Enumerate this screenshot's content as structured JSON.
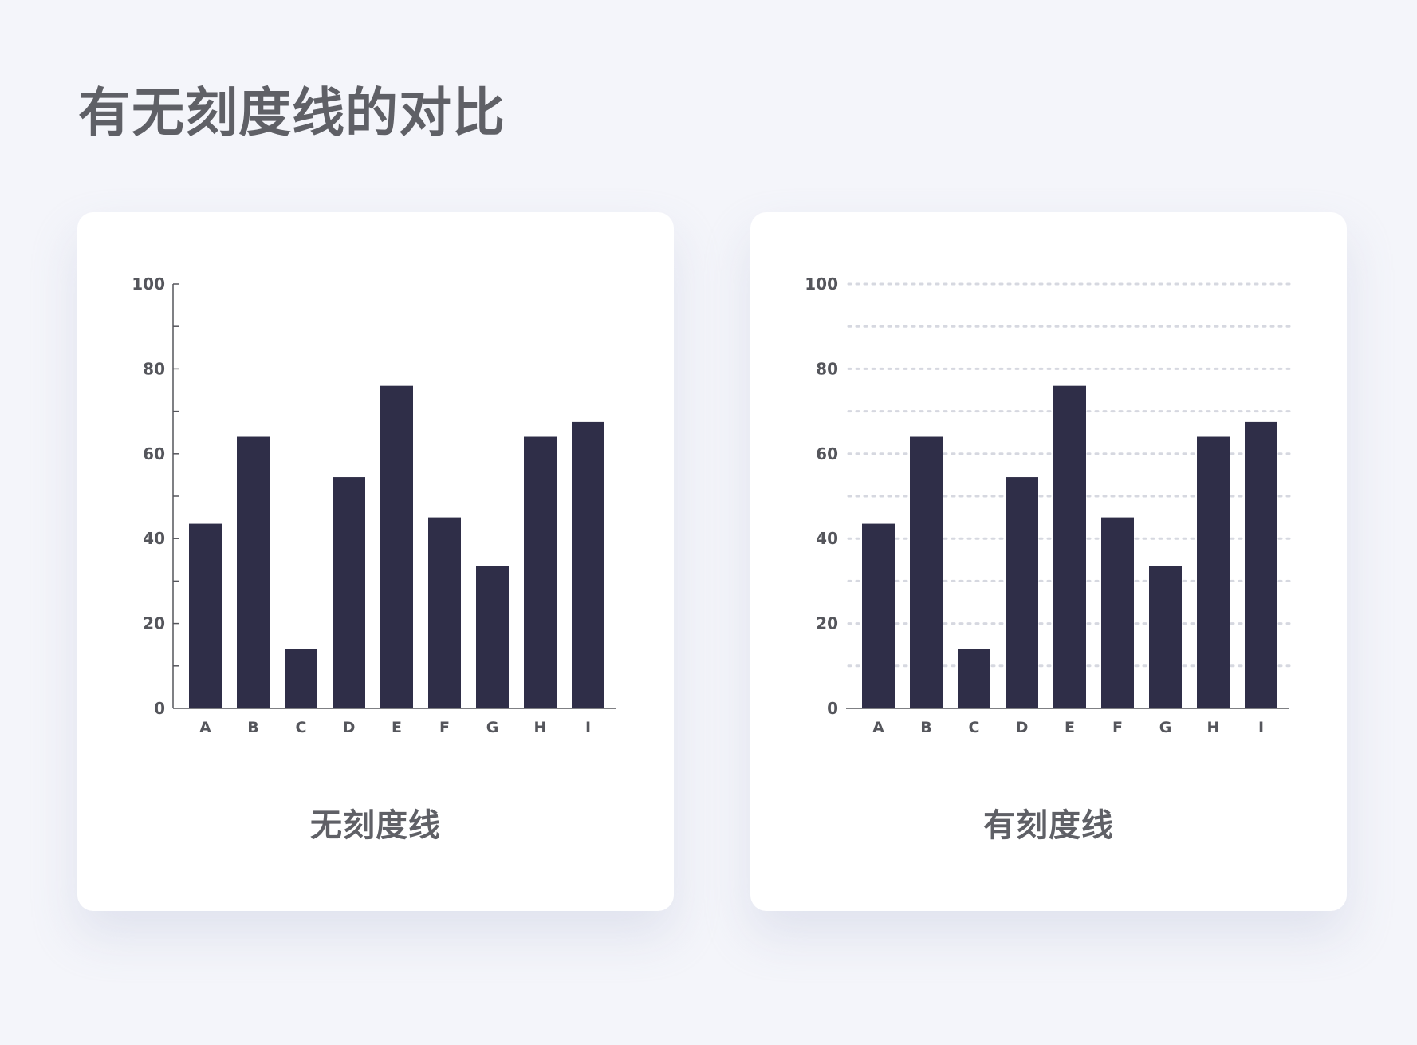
{
  "page": {
    "title": "有无刻度线的对比"
  },
  "colors": {
    "background": "#f4f5fa",
    "card": "#ffffff",
    "bar": "#2f2e48",
    "axis": "#55565c",
    "grid": "#d6d8e0",
    "text": "#5f6066"
  },
  "chart_data": [
    {
      "type": "bar",
      "title": "",
      "caption": "无刻度线",
      "categories": [
        "A",
        "B",
        "C",
        "D",
        "E",
        "F",
        "G",
        "H",
        "I"
      ],
      "values": [
        43.5,
        64,
        14,
        54.5,
        76,
        45,
        33.5,
        64,
        67.5
      ],
      "ylim": [
        0,
        100
      ],
      "yticks": [
        0,
        20,
        40,
        60,
        80,
        100
      ],
      "minor_tick_step": 10,
      "grid": false,
      "xlabel": "",
      "ylabel": ""
    },
    {
      "type": "bar",
      "title": "",
      "caption": "有刻度线",
      "categories": [
        "A",
        "B",
        "C",
        "D",
        "E",
        "F",
        "G",
        "H",
        "I"
      ],
      "values": [
        43.5,
        64,
        14,
        54.5,
        76,
        45,
        33.5,
        64,
        67.5
      ],
      "ylim": [
        0,
        100
      ],
      "yticks": [
        0,
        20,
        40,
        60,
        80,
        100
      ],
      "grid_step": 10,
      "grid": true,
      "grid_style": "dotted",
      "xlabel": "",
      "ylabel": ""
    }
  ]
}
